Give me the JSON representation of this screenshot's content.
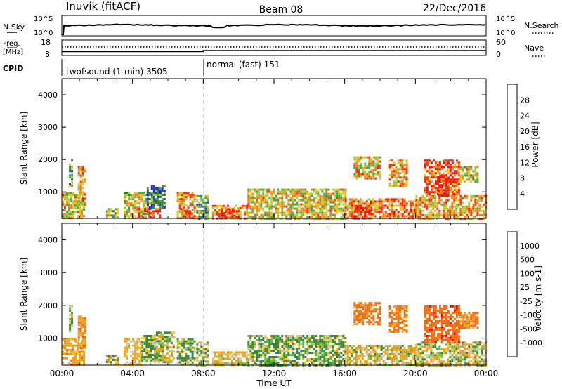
{
  "header": {
    "station": "Inuvik (fitACF)",
    "beam": "Beam 08",
    "date": "22/Dec/2016"
  },
  "top_panel": {
    "nsky_label": "N.Sky",
    "nsky_ticks": [
      "10^5",
      "10^0"
    ],
    "nsearch_label": "N.Search",
    "nsearch_ticks": [
      "10^5",
      "10^0"
    ],
    "freq_label": "Freq.",
    "freq_unit": "[MHz]",
    "freq_ticks": [
      "18",
      "8"
    ],
    "nave_label": "Nave",
    "nave_ticks": [
      "60",
      "0"
    ],
    "cpid_label": "CPID",
    "cpid_segments": [
      {
        "label": "twofsound (1-min) 3505",
        "start_hour": 0
      },
      {
        "label": "normal (fast) 151",
        "start_hour": 8
      }
    ]
  },
  "colors": {
    "power_scale": [
      "#2020ff",
      "#2a4aa8",
      "#3f7a3f",
      "#4da64d",
      "#9fd238",
      "#f0c020",
      "#f08020",
      "#ff3010",
      "#ee1111"
    ],
    "velocity_scale": [
      "#ff0000",
      "#f06a10",
      "#f0a020",
      "#f2c233",
      "#c8c8c8",
      "#56c23a",
      "#3a8a3a",
      "#3a6aa8",
      "#2a3a90"
    ],
    "grey_trace": "#c0c0c0"
  },
  "chart_data": [
    {
      "type": "heatmap",
      "title": "Power",
      "xlabel": "Time UT",
      "ylabel": "Slant Range [km]",
      "xlim_hours": [
        0,
        24
      ],
      "ylim": [
        180,
        4500
      ],
      "x_tick_labels": [
        "00:00",
        "04:00",
        "08:00",
        "12:00",
        "16:00",
        "20:00",
        "00:00"
      ],
      "y_ticks": [
        1000,
        2000,
        3000,
        4000
      ],
      "colorbar": {
        "label": "Power [dB]",
        "ticks": [
          "28",
          "24",
          "20",
          "16",
          "12",
          "8",
          "4"
        ],
        "range": [
          0,
          30
        ]
      },
      "mode_change_hour": 8.0,
      "echo_regions": [
        {
          "t_start": 0.0,
          "t_end": 1.3,
          "r_min": 180,
          "r_max": 1000,
          "level": 17
        },
        {
          "t_start": 0.9,
          "t_end": 1.3,
          "r_min": 600,
          "r_max": 1800,
          "level": 20
        },
        {
          "t_start": 0.4,
          "t_end": 0.6,
          "r_min": 1200,
          "r_max": 2000,
          "level": 12
        },
        {
          "t_start": 2.5,
          "t_end": 3.2,
          "r_min": 180,
          "r_max": 500,
          "level": 14
        },
        {
          "t_start": 3.5,
          "t_end": 5.0,
          "r_min": 180,
          "r_max": 1000,
          "level": 16
        },
        {
          "t_start": 4.3,
          "t_end": 5.6,
          "r_min": 180,
          "r_max": 500,
          "level": 26
        },
        {
          "t_start": 4.8,
          "t_end": 5.8,
          "r_min": 500,
          "r_max": 1200,
          "level": 8
        },
        {
          "t_start": 6.5,
          "t_end": 7.5,
          "r_min": 180,
          "r_max": 1000,
          "level": 20
        },
        {
          "t_start": 6.7,
          "t_end": 7.3,
          "r_min": 180,
          "r_max": 500,
          "level": 27
        },
        {
          "t_start": 7.6,
          "t_end": 8.3,
          "r_min": 180,
          "r_max": 900,
          "level": 12
        },
        {
          "t_start": 8.5,
          "t_end": 10.5,
          "r_min": 180,
          "r_max": 600,
          "level": 20
        },
        {
          "t_start": 9.0,
          "t_end": 10.0,
          "r_min": 180,
          "r_max": 500,
          "level": 27
        },
        {
          "t_start": 10.5,
          "t_end": 16.0,
          "r_min": 180,
          "r_max": 1100,
          "level": 17
        },
        {
          "t_start": 16.0,
          "t_end": 20.0,
          "r_min": 180,
          "r_max": 800,
          "level": 22
        },
        {
          "t_start": 16.5,
          "t_end": 17.5,
          "r_min": 180,
          "r_max": 600,
          "level": 26
        },
        {
          "t_start": 20.0,
          "t_end": 24.0,
          "r_min": 180,
          "r_max": 900,
          "level": 20
        },
        {
          "t_start": 18.5,
          "t_end": 19.5,
          "r_min": 1200,
          "r_max": 2000,
          "level": 20
        },
        {
          "t_start": 20.5,
          "t_end": 22.5,
          "r_min": 900,
          "r_max": 2000,
          "level": 24
        },
        {
          "t_start": 21.3,
          "t_end": 21.8,
          "r_min": 900,
          "r_max": 1500,
          "level": 28
        },
        {
          "t_start": 22.5,
          "t_end": 23.5,
          "r_min": 1300,
          "r_max": 1800,
          "level": 16
        },
        {
          "t_start": 16.5,
          "t_end": 18.0,
          "r_min": 1400,
          "r_max": 2100,
          "level": 18
        }
      ]
    },
    {
      "type": "heatmap",
      "title": "Velocity",
      "xlabel": "Time UT",
      "ylabel": "Slant Range [km]",
      "xlim_hours": [
        0,
        24
      ],
      "ylim": [
        180,
        4500
      ],
      "x_tick_labels": [
        "00:00",
        "04:00",
        "08:00",
        "12:00",
        "16:00",
        "20:00",
        "00:00"
      ],
      "y_ticks": [
        1000,
        2000,
        3000,
        4000
      ],
      "colorbar": {
        "label": "Velocity [m s-1]",
        "ticks": [
          "1000",
          "500",
          "100",
          "25",
          "-25",
          "-100",
          "-500",
          "-1000"
        ],
        "range": [
          -1000,
          1000
        ]
      },
      "mode_change_hour": 8.0,
      "echo_regions": [
        {
          "t_start": 0.0,
          "t_end": 1.3,
          "r_min": 180,
          "r_max": 1000,
          "level": -300
        },
        {
          "t_start": 0.9,
          "t_end": 1.3,
          "r_min": 700,
          "r_max": 1700,
          "level": -400
        },
        {
          "t_start": 0.4,
          "t_end": 0.6,
          "r_min": 1200,
          "r_max": 2000,
          "level": 10
        },
        {
          "t_start": 2.5,
          "t_end": 3.2,
          "r_min": 180,
          "r_max": 500,
          "level": -80
        },
        {
          "t_start": 3.5,
          "t_end": 4.5,
          "r_min": 180,
          "r_max": 1000,
          "level": -200
        },
        {
          "t_start": 4.5,
          "t_end": 5.5,
          "r_min": 300,
          "r_max": 1100,
          "level": 150
        },
        {
          "t_start": 5.2,
          "t_end": 6.3,
          "r_min": 300,
          "r_max": 1200,
          "level": 0
        },
        {
          "t_start": 6.5,
          "t_end": 7.5,
          "r_min": 180,
          "r_max": 1000,
          "level": 120
        },
        {
          "t_start": 7.6,
          "t_end": 8.3,
          "r_min": 180,
          "r_max": 900,
          "level": 60
        },
        {
          "t_start": 8.5,
          "t_end": 10.5,
          "r_min": 180,
          "r_max": 600,
          "level": -150
        },
        {
          "t_start": 10.5,
          "t_end": 16.0,
          "r_min": 180,
          "r_max": 1100,
          "level": 100
        },
        {
          "t_start": 16.0,
          "t_end": 20.0,
          "r_min": 180,
          "r_max": 800,
          "level": -120
        },
        {
          "t_start": 20.0,
          "t_end": 24.0,
          "r_min": 180,
          "r_max": 900,
          "level": -60
        },
        {
          "t_start": 18.5,
          "t_end": 19.5,
          "r_min": 1200,
          "r_max": 2000,
          "level": -600
        },
        {
          "t_start": 20.5,
          "t_end": 22.5,
          "r_min": 900,
          "r_max": 2000,
          "level": -800
        },
        {
          "t_start": 22.5,
          "t_end": 23.5,
          "r_min": 1300,
          "r_max": 1800,
          "level": -500
        },
        {
          "t_start": 16.5,
          "t_end": 18.0,
          "r_min": 1400,
          "r_max": 2100,
          "level": -600
        }
      ]
    }
  ]
}
